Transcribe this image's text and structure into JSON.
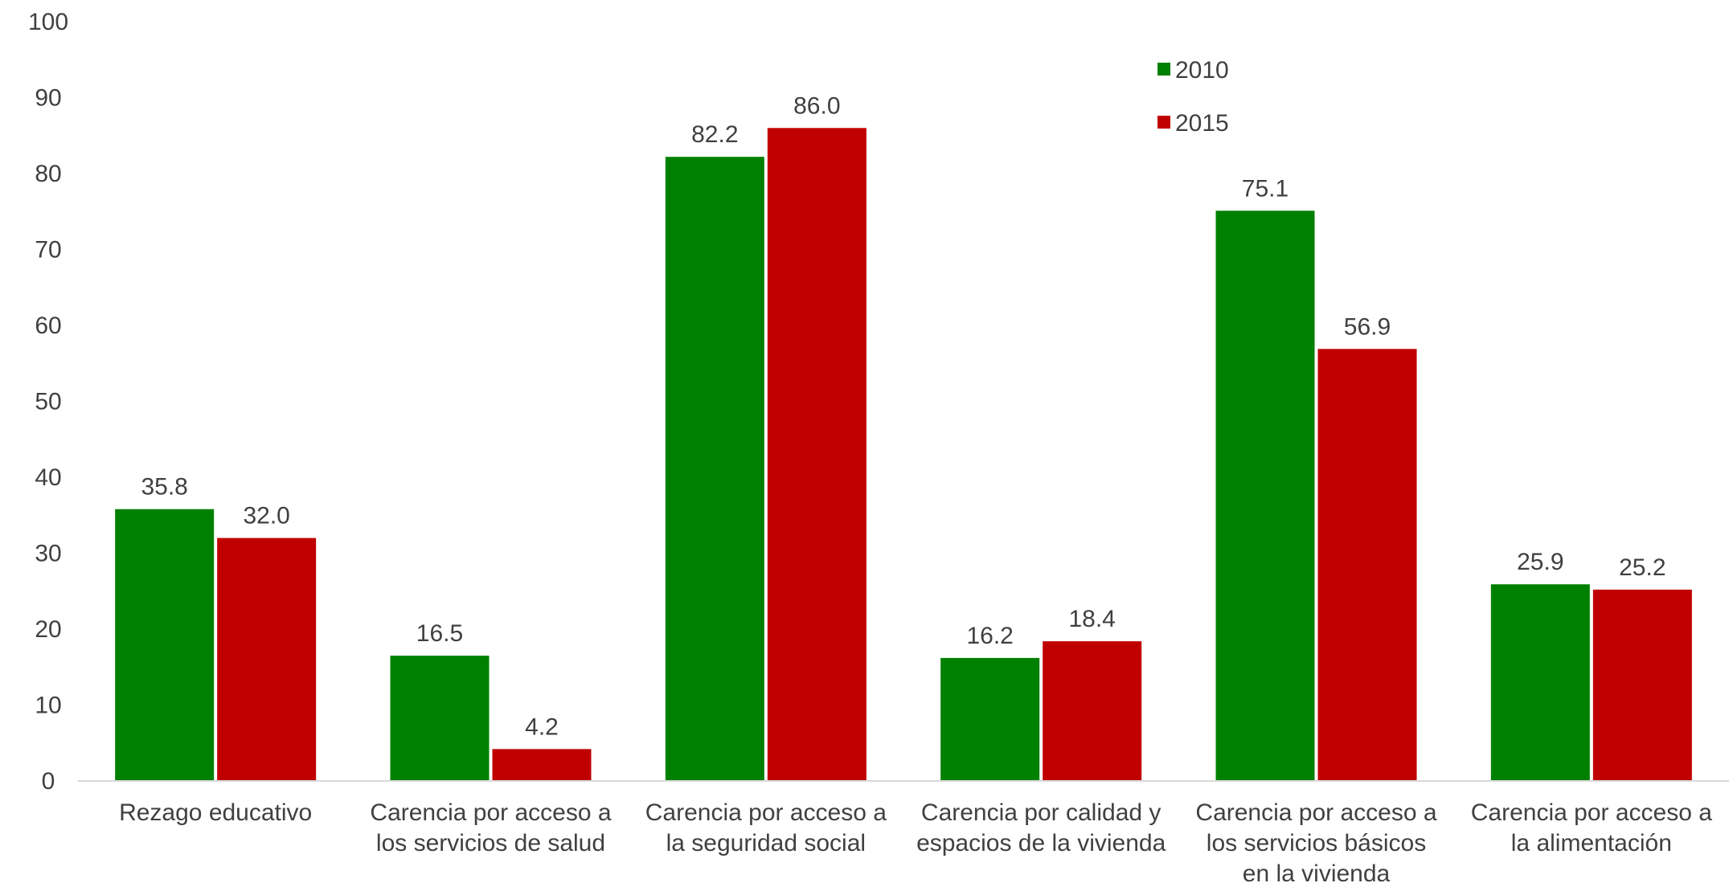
{
  "chart_data": {
    "type": "bar",
    "title": "",
    "xlabel": "",
    "ylabel": "",
    "ylim": [
      0,
      100
    ],
    "yticks": [
      0,
      10,
      20,
      30,
      40,
      50,
      60,
      70,
      80,
      90,
      100
    ],
    "categories": [
      [
        "Rezago educativo"
      ],
      [
        "Carencia por acceso a",
        "los servicios de salud"
      ],
      [
        "Carencia por acceso a",
        "la seguridad social"
      ],
      [
        "Carencia por calidad y",
        "espacios de la vivienda"
      ],
      [
        "Carencia por acceso a",
        "los servicios básicos",
        "en la vivienda"
      ],
      [
        "Carencia por acceso a",
        "la alimentación"
      ]
    ],
    "series": [
      {
        "name": "2010",
        "color": "#008000",
        "values": [
          35.8,
          16.5,
          82.2,
          16.2,
          75.1,
          25.9
        ],
        "labels": [
          "35.8",
          "16.5",
          "82.2",
          "16.2",
          "75.1",
          "25.9"
        ]
      },
      {
        "name": "2015",
        "color": "#C00000",
        "values": [
          32.0,
          4.2,
          86.0,
          18.4,
          56.9,
          25.2
        ],
        "labels": [
          "32.0",
          "4.2",
          "86.0",
          "18.4",
          "56.9",
          "25.2"
        ]
      }
    ],
    "grid": false,
    "legend_position": "top-right"
  }
}
